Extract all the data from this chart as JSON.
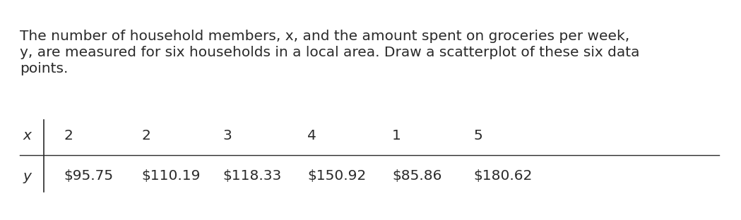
{
  "paragraph_line1": "The number of household members, x, and the amount spent on groceries per week,",
  "paragraph_line2": "y, are measured for six households in a local area. Draw a scatterplot of these six data",
  "paragraph_line3": "points.",
  "paragraph_italic_x": "x,",
  "paragraph_italic_y": "y,",
  "x_label": "x",
  "y_label": "y",
  "x_values": [
    "2",
    "2",
    "3",
    "4",
    "1",
    "5"
  ],
  "y_values": [
    "$95.75",
    "$110.19",
    "$118.33",
    "$150.92",
    "$85.86",
    "$180.62"
  ],
  "font_size": 14.5,
  "background_color": "#ffffff",
  "text_color": "#2a2a2a",
  "font_family": "DejaVu Sans"
}
